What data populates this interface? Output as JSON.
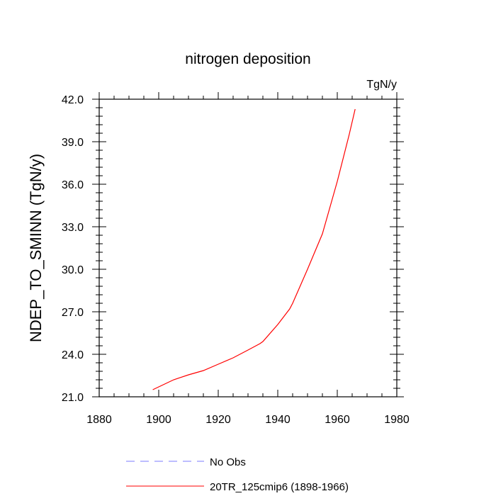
{
  "chart_data": {
    "type": "line",
    "title": "nitrogen deposition",
    "units_label": "TgN/y",
    "xlabel": "",
    "ylabel": "NDEP_TO_SMINN  (TgN/y)",
    "xlim": [
      1880,
      1980
    ],
    "ylim": [
      21.0,
      42.0
    ],
    "x_ticks": [
      1880,
      1900,
      1920,
      1940,
      1960,
      1980
    ],
    "x_tick_labels": [
      "1880",
      "1900",
      "1920",
      "1940",
      "1960",
      "1980"
    ],
    "y_ticks": [
      21,
      24,
      27,
      30,
      33,
      36,
      39,
      42
    ],
    "y_tick_labels": [
      "21.0",
      "24.0",
      "27.0",
      "30.0",
      "33.0",
      "36.0",
      "39.0",
      "42.0"
    ],
    "grid": false,
    "legend_position": "bottom",
    "series": [
      {
        "name": "No Obs",
        "color": "#7b7bff",
        "dash": "dashed",
        "x": [],
        "y": []
      },
      {
        "name": "20TR_125cmip6 (1898-1966)",
        "color": "#ff0000",
        "dash": "solid",
        "x": [
          1898,
          1900,
          1905,
          1910,
          1915,
          1920,
          1925,
          1930,
          1934,
          1935,
          1940,
          1944,
          1945,
          1950,
          1955,
          1960,
          1964,
          1966
        ],
        "y": [
          21.5,
          21.7,
          22.2,
          22.55,
          22.85,
          23.3,
          23.75,
          24.3,
          24.75,
          24.9,
          26.1,
          27.2,
          27.6,
          30.0,
          32.5,
          36.2,
          39.5,
          41.3
        ]
      }
    ]
  }
}
